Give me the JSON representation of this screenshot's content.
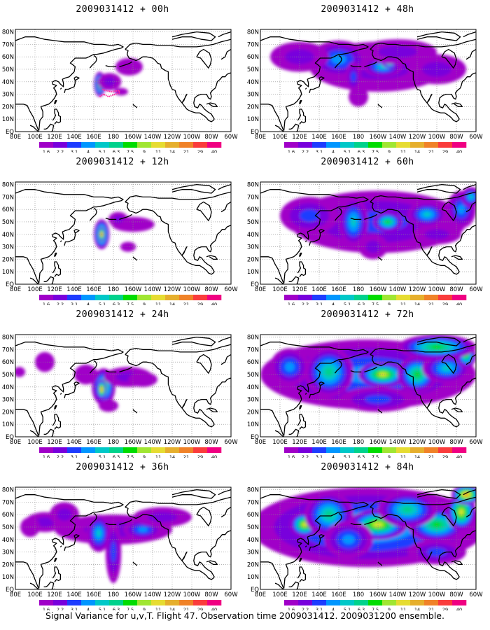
{
  "figure": {
    "caption": "Signal Variance for u,v,T. Flight 47. Observation time 2009031412. 2009031200 ensemble.",
    "lon_labels": [
      "80E",
      "100E",
      "120E",
      "140E",
      "160E",
      "180",
      "160W",
      "140W",
      "120W",
      "100W",
      "80W",
      "60W"
    ],
    "lat_labels": [
      "80N",
      "70N",
      "60N",
      "50N",
      "40N",
      "30N",
      "20N",
      "10N",
      "EQ"
    ],
    "colorbar": {
      "levels": [
        "1.6",
        "2.2",
        "3.1",
        "4",
        "5.1",
        "6.3",
        "7.5",
        "9",
        "11",
        "14",
        "21",
        "29",
        "40"
      ],
      "colors": [
        "#a000c8",
        "#7800dc",
        "#1e3cff",
        "#0096ff",
        "#00c8c8",
        "#00d28c",
        "#00dc00",
        "#a0e632",
        "#e6dc32",
        "#e6af2d",
        "#f08228",
        "#fa3c3c",
        "#f00082"
      ]
    },
    "panels": [
      {
        "title": "2009031412 + 00h",
        "lead": 0,
        "marker": true
      },
      {
        "title": "2009031412 + 48h",
        "lead": 48
      },
      {
        "title": "2009031412 + 12h",
        "lead": 12
      },
      {
        "title": "2009031412 + 60h",
        "lead": 60
      },
      {
        "title": "2009031412 + 24h",
        "lead": 24
      },
      {
        "title": "2009031412 + 72h",
        "lead": 72
      },
      {
        "title": "2009031412 + 36h",
        "lead": 36
      },
      {
        "title": "2009031412 + 84h",
        "lead": 84
      }
    ]
  }
}
